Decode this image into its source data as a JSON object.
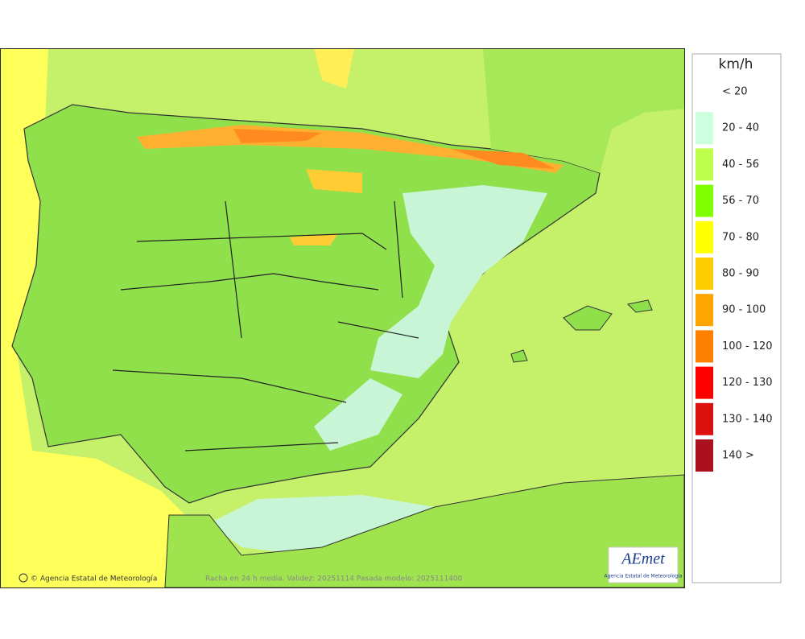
{
  "map": {
    "footer": "Racha en 24 h media. Validez: 20251114 Pasada modelo: 2025111400",
    "copyright": "© Agencia Estatal de Meteorología",
    "logo": {
      "name": "AEmet",
      "subtitle": "Agencia Estatal de Meteorología"
    }
  },
  "legend": {
    "unit": "km/h",
    "items": [
      {
        "label": "< 20",
        "color": null
      },
      {
        "label": "20 - 40",
        "color": "#ccffdd"
      },
      {
        "label": "40 - 56",
        "color": "#bfff4d"
      },
      {
        "label": "56 - 70",
        "color": "#80ff00"
      },
      {
        "label": "70 - 80",
        "color": "#ffff00"
      },
      {
        "label": "80 - 90",
        "color": "#ffcc00"
      },
      {
        "label": "90 - 100",
        "color": "#ffa500"
      },
      {
        "label": "100 - 120",
        "color": "#ff8000"
      },
      {
        "label": "120 - 130",
        "color": "#ff0000"
      },
      {
        "label": "130 - 140",
        "color": "#dd1010"
      },
      {
        "label": "140 >",
        "color": "#aa1020"
      }
    ]
  }
}
